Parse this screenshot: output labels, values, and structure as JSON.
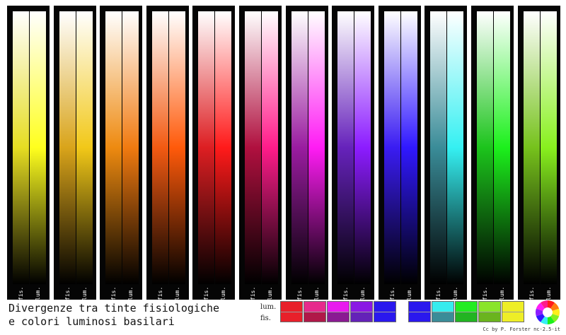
{
  "title": {
    "line1": "Divergenze tra tinte fisiologiche",
    "line2": "e colori luminosi basilari"
  },
  "labels": {
    "fis": "fis.",
    "lum": "lum."
  },
  "legend": {
    "lum": "lum.",
    "fis": "fis."
  },
  "credit": "Cc by P. Forster nc-2.5-it",
  "strips": [
    {
      "name": "yellow",
      "fis": "#e6dd22",
      "lum": "#ffff1e"
    },
    {
      "name": "gold",
      "fis": "#d9a41a",
      "lum": "#f2c818"
    },
    {
      "name": "orange",
      "fis": "#ee8a10",
      "lum": "#f07a10"
    },
    {
      "name": "orange-red",
      "fis": "#f25a12",
      "lum": "#ff5a0a"
    },
    {
      "name": "red",
      "fis": "#dd1e22",
      "lum": "#ff1a1a"
    },
    {
      "name": "crimson",
      "fis": "#b0103f",
      "lum": "#ff1c8a"
    },
    {
      "name": "magenta",
      "fis": "#9a1ca0",
      "lum": "#ff1cf4"
    },
    {
      "name": "violet",
      "fis": "#6622bb",
      "lum": "#8c1cff"
    },
    {
      "name": "blue",
      "fis": "#3a1cf2",
      "lum": "#3018ff"
    },
    {
      "name": "cyan",
      "fis": "#3a8c98",
      "lum": "#35f0f2"
    },
    {
      "name": "green",
      "fis": "#1cc41c",
      "lum": "#1cf01c"
    },
    {
      "name": "yellow-green",
      "fis": "#76c21c",
      "lum": "#88f01e"
    }
  ],
  "swatch_groups": [
    [
      {
        "lum": "#e8202a",
        "fis": "#e8202a"
      },
      {
        "lum": "#e62a8c",
        "fis": "#b01848"
      },
      {
        "lum": "#e81aee",
        "fis": "#8a1a92"
      },
      {
        "lum": "#8a18e4",
        "fis": "#6422b8"
      },
      {
        "lum": "#2a18ee",
        "fis": "#2a18ee"
      }
    ],
    [
      {
        "lum": "#2a18ee",
        "fis": "#2a18ee"
      },
      {
        "lum": "#36ecee",
        "fis": "#3a8c98"
      },
      {
        "lum": "#22ec22",
        "fis": "#22b422"
      },
      {
        "lum": "#8ae42a",
        "fis": "#6ab41e"
      },
      {
        "lum": "#eeee26",
        "fis": "#eeee26"
      }
    ]
  ]
}
